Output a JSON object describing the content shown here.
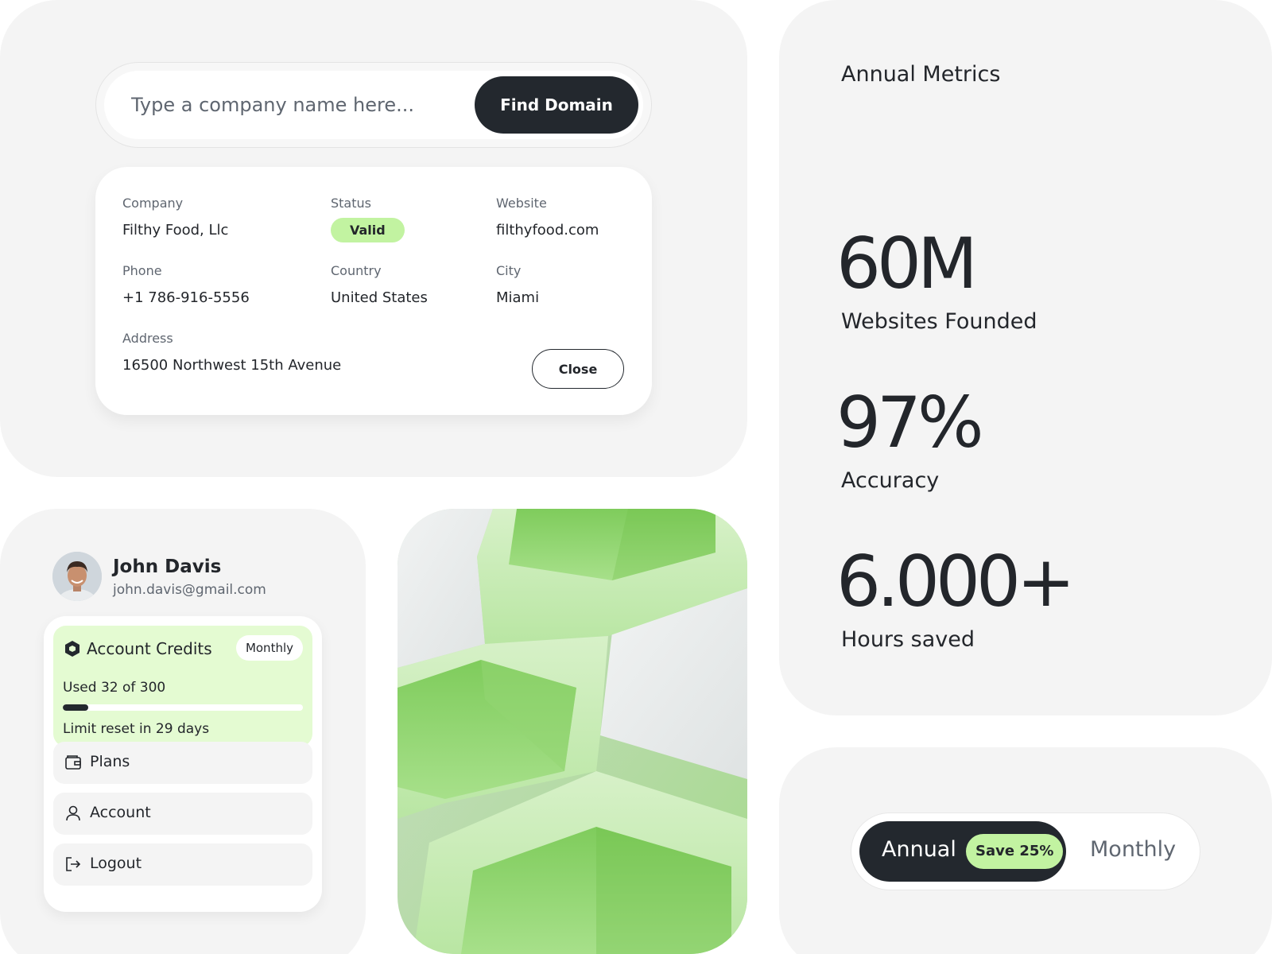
{
  "search": {
    "placeholder": "Type a company name here...",
    "button_label": "Find Domain"
  },
  "company": {
    "company_label": "Company",
    "company_value": "Filthy Food, Llc",
    "status_label": "Status",
    "status_value": "Valid",
    "website_label": "Website",
    "website_value": "filthyfood.com",
    "phone_label": "Phone",
    "phone_value": "+1 786-916-5556",
    "country_label": "Country",
    "country_value": "United States",
    "city_label": "City",
    "city_value": "Miami",
    "address_label": "Address",
    "address_value": "16500 Northwest 15th Avenue",
    "close_label": "Close"
  },
  "metrics": {
    "title": "Annual Metrics",
    "items": [
      {
        "value": "60M",
        "label": "Websites Founded"
      },
      {
        "value": "97%",
        "label": "Accuracy"
      },
      {
        "value": "6.000+",
        "label": "Hours saved"
      }
    ]
  },
  "profile": {
    "name": "John Davis",
    "email": "john.davis@gmail.com",
    "credits": {
      "title": "Account Credits",
      "period": "Monthly",
      "used_text": "Used 32 of 300",
      "used": 32,
      "limit": 300,
      "reset_text": "Limit reset in 29 days"
    },
    "menu": [
      {
        "label": "Plans",
        "icon": "wallet-icon"
      },
      {
        "label": "Account",
        "icon": "user-icon"
      },
      {
        "label": "Logout",
        "icon": "logout-icon"
      }
    ]
  },
  "billing_toggle": {
    "annual_label": "Annual",
    "save_badge": "Save 25%",
    "monthly_label": "Monthly",
    "selected": "Annual"
  },
  "colors": {
    "dark": "#23282e",
    "accent_green": "#c2f3a1",
    "credits_bg": "#e4fbd2",
    "panel_bg": "#f4f4f4"
  }
}
